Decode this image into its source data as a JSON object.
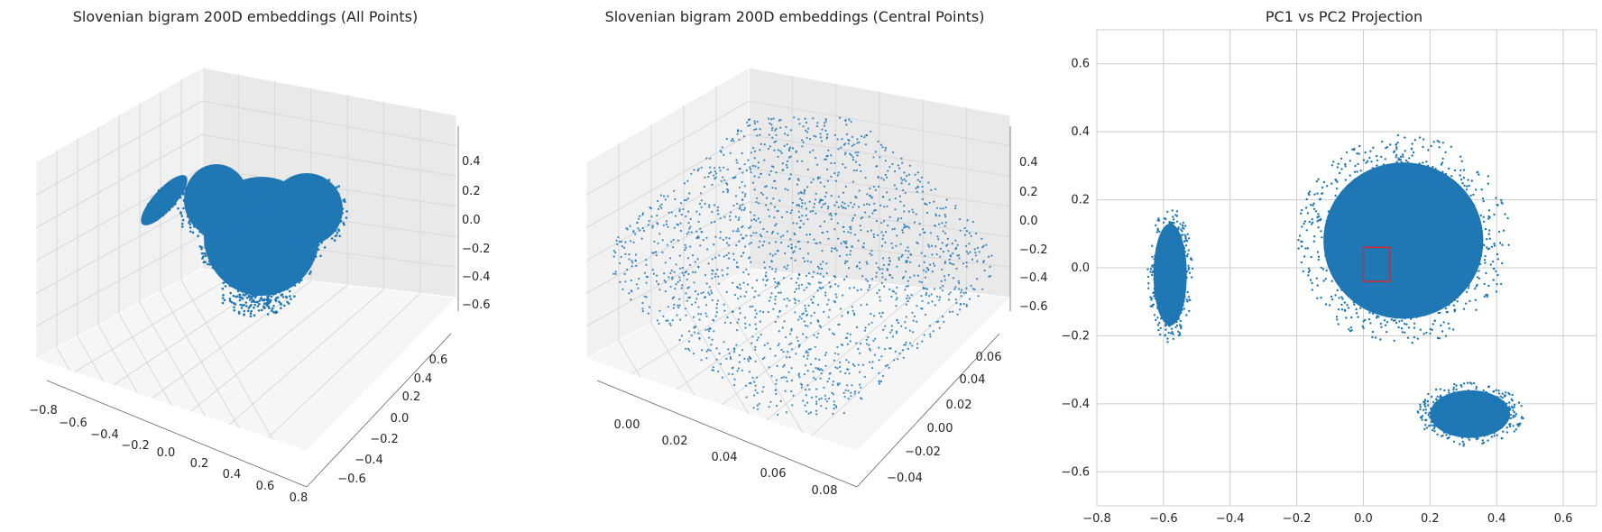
{
  "chart_data": [
    {
      "type": "scatter",
      "projection": "3d",
      "title": "Slovenian bigram 200D embeddings (All Points)",
      "xticks": [
        "−0.8",
        "−0.6",
        "−0.4",
        "−0.2",
        "0.0",
        "0.2",
        "0.4",
        "0.6",
        "0.8"
      ],
      "yticks": [
        "−0.6",
        "−0.4",
        "−0.2",
        "0.0",
        "0.2",
        "0.4",
        "0.6"
      ],
      "zticks": [
        "0.4",
        "0.2",
        "0.0",
        "−0.2",
        "−0.4",
        "−0.6"
      ],
      "xlim": [
        -0.8,
        0.8
      ],
      "ylim": [
        -0.6,
        0.6
      ],
      "zlim": [
        -0.6,
        0.4
      ],
      "grid": true,
      "color": "#1f77b4"
    },
    {
      "type": "scatter",
      "projection": "3d",
      "title": "Slovenian bigram 200D embeddings (Central Points)",
      "xticks": [
        "0.00",
        "0.02",
        "0.04",
        "0.06",
        "0.08"
      ],
      "yticks": [
        "−0.04",
        "−0.02",
        "0.00",
        "0.02",
        "0.04",
        "0.06"
      ],
      "zticks": [
        "0.4",
        "0.2",
        "0.0",
        "−0.2",
        "−0.4",
        "−0.6"
      ],
      "xlim": [
        0.0,
        0.08
      ],
      "ylim": [
        -0.04,
        0.06
      ],
      "zlim": [
        -0.6,
        0.4
      ],
      "grid": true,
      "color": "#1f77b4"
    },
    {
      "type": "scatter",
      "title": "PC1 vs PC2 Projection",
      "xticks": [
        "−0.8",
        "−0.6",
        "−0.4",
        "−0.2",
        "0.0",
        "0.2",
        "0.4",
        "0.6"
      ],
      "yticks": [
        "0.6",
        "0.4",
        "0.2",
        "0.0",
        "−0.2",
        "−0.4",
        "−0.6"
      ],
      "xlim": [
        -0.8,
        0.7
      ],
      "ylim": [
        -0.7,
        0.7
      ],
      "grid": true,
      "color": "#1f77b4",
      "clusters": [
        {
          "label": "main",
          "cx": 0.12,
          "cy": 0.08,
          "sx": 0.24,
          "sy": 0.23
        },
        {
          "label": "left",
          "cx": -0.58,
          "cy": -0.02,
          "sx": 0.05,
          "sy": 0.15
        },
        {
          "label": "lower-right",
          "cx": 0.32,
          "cy": -0.43,
          "sx": 0.12,
          "sy": 0.07
        }
      ],
      "highlight_box": {
        "x": [
          0.0,
          0.08
        ],
        "y": [
          -0.04,
          0.06
        ],
        "color": "#d62728"
      }
    }
  ]
}
